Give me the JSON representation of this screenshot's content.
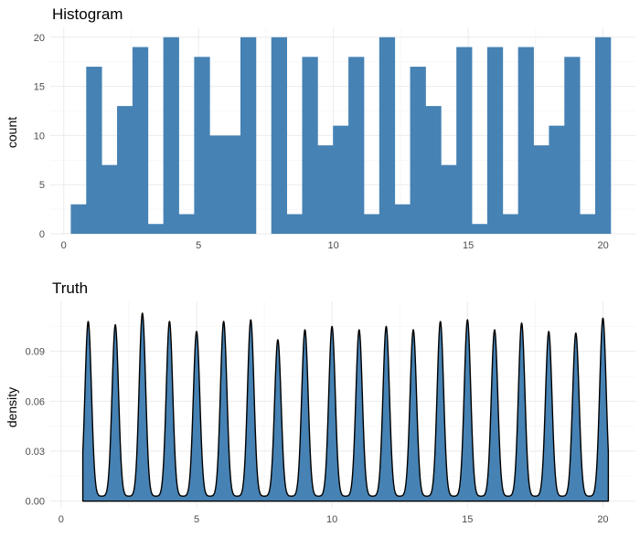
{
  "chart_data": [
    {
      "type": "bar",
      "title": "Histogram",
      "xlabel": "",
      "ylabel": "count",
      "xlim": [
        -0.5,
        21.2
      ],
      "ylim": [
        0,
        21
      ],
      "x_ticks": [
        0,
        5,
        10,
        15,
        20
      ],
      "y_ticks": [
        0,
        5,
        10,
        15,
        20
      ],
      "grid": true,
      "bar_color": "#4682B4",
      "bin_start": 0.26,
      "bin_width": 0.572,
      "values": [
        3,
        17,
        7,
        13,
        19,
        1,
        20,
        2,
        18,
        10,
        10,
        20,
        0,
        20,
        2,
        18,
        9,
        11,
        18,
        2,
        20,
        3,
        17,
        13,
        7,
        19,
        1,
        19,
        2,
        19,
        9,
        11,
        18,
        2,
        20
      ]
    },
    {
      "type": "area",
      "title": "Truth",
      "xlabel": "",
      "ylabel": "density",
      "xlim": [
        -0.4,
        21.2
      ],
      "ylim": [
        -0.004,
        0.12
      ],
      "x_ticks": [
        0,
        5,
        10,
        15,
        20
      ],
      "y_ticks": [
        "0.00",
        "0.03",
        "0.06",
        "0.09"
      ],
      "grid": true,
      "fill_color": "#4682B4",
      "line_color": "#000000",
      "x_range": [
        0.8,
        20.2
      ],
      "floor_density": 0.003,
      "peak_width": 0.12,
      "peaks": [
        {
          "x": 1,
          "density": 0.108
        },
        {
          "x": 2,
          "density": 0.106
        },
        {
          "x": 3,
          "density": 0.113
        },
        {
          "x": 4,
          "density": 0.108
        },
        {
          "x": 5,
          "density": 0.102
        },
        {
          "x": 6,
          "density": 0.108
        },
        {
          "x": 7,
          "density": 0.109
        },
        {
          "x": 8,
          "density": 0.097
        },
        {
          "x": 9,
          "density": 0.103
        },
        {
          "x": 10,
          "density": 0.105
        },
        {
          "x": 11,
          "density": 0.103
        },
        {
          "x": 12,
          "density": 0.105
        },
        {
          "x": 13,
          "density": 0.103
        },
        {
          "x": 14,
          "density": 0.108
        },
        {
          "x": 15,
          "density": 0.109
        },
        {
          "x": 16,
          "density": 0.103
        },
        {
          "x": 17,
          "density": 0.107
        },
        {
          "x": 18,
          "density": 0.102
        },
        {
          "x": 19,
          "density": 0.101
        },
        {
          "x": 20,
          "density": 0.11
        }
      ]
    }
  ]
}
